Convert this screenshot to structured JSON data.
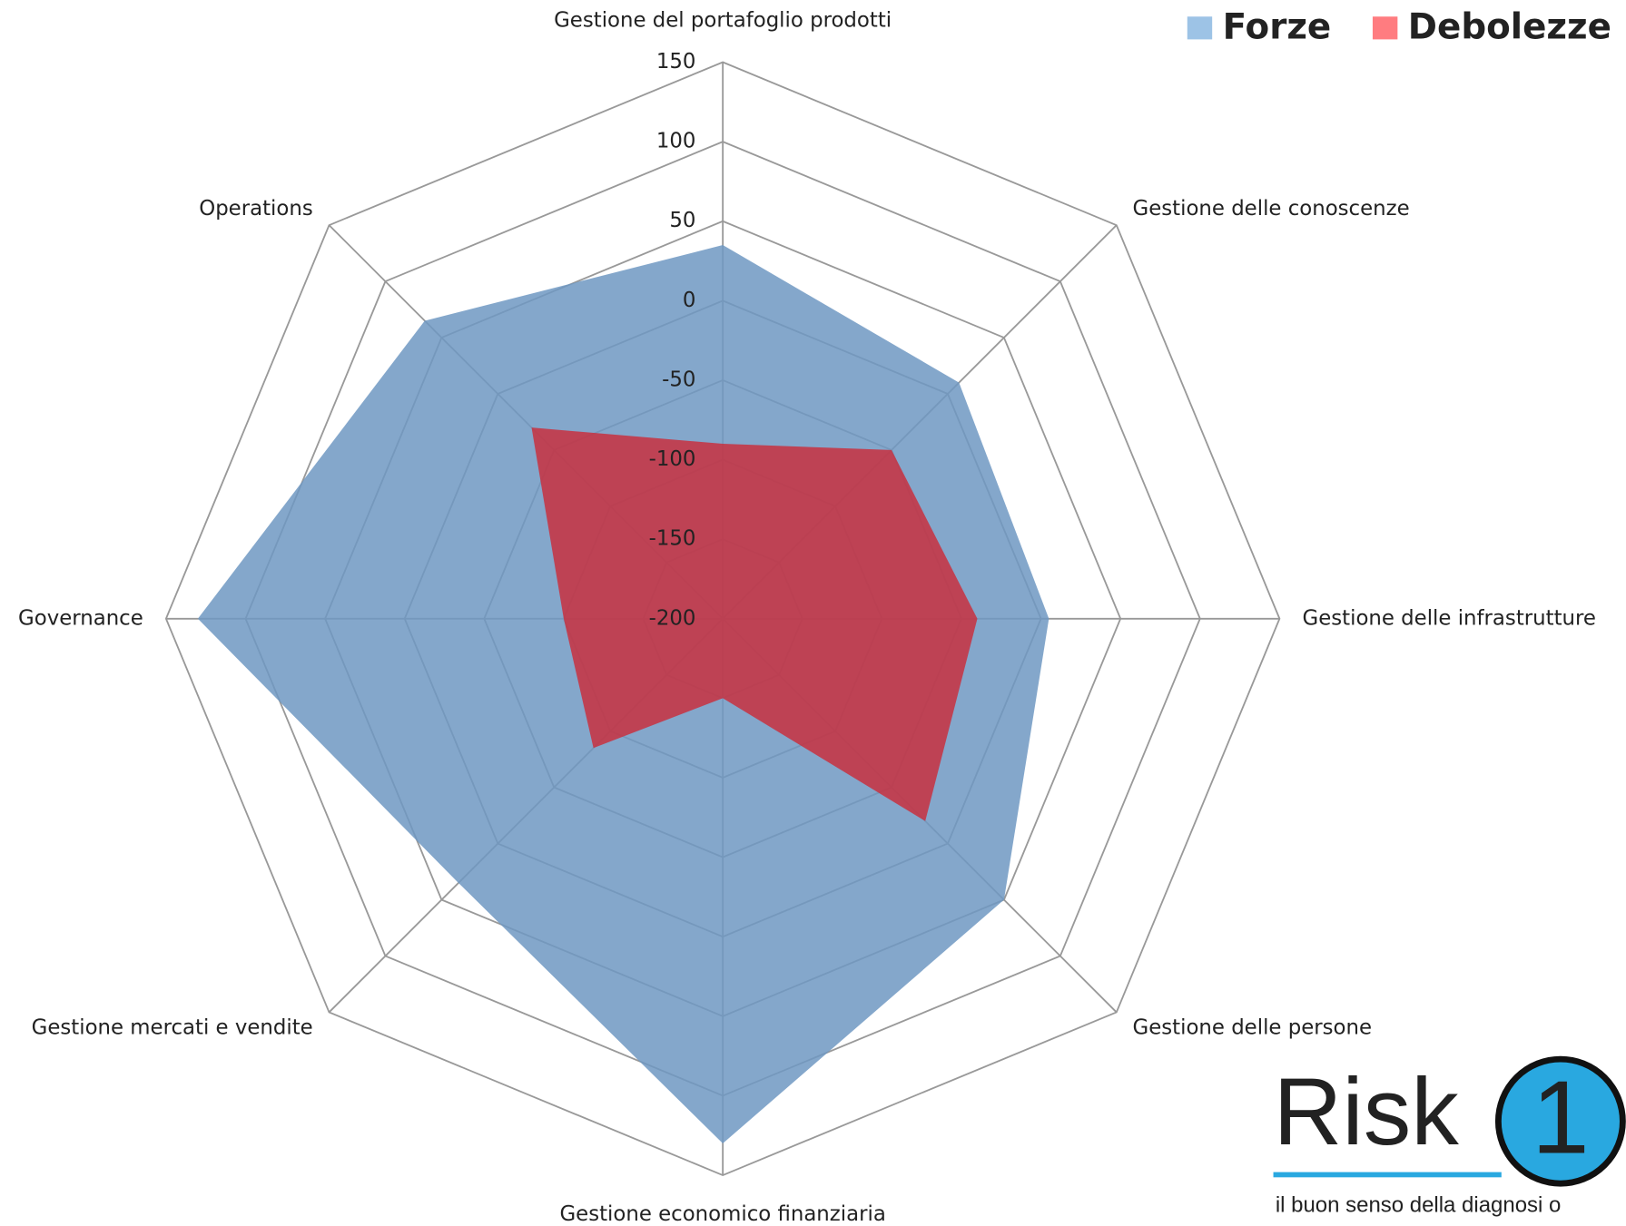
{
  "chart_data": {
    "type": "radar",
    "categories": [
      "Gestione del portafoglio prodotti",
      "Gestione delle conoscenze",
      "Gestione delle infrastrutture",
      "Gestione delle persone",
      "Gestione economico finanziaria",
      "Gestione mercati e vendite",
      "Governance",
      "Operations"
    ],
    "series": [
      {
        "name": "Forze",
        "color": "#6f98c2",
        "legend_color": "#9dc3e6",
        "values": [
          35,
          10,
          5,
          50,
          130,
          35,
          130,
          65
        ]
      },
      {
        "name": "Debolezze",
        "color": "#c8303f",
        "legend_color": "#ff7c80",
        "values": [
          -90,
          -50,
          -40,
          -20,
          -150,
          -85,
          -100,
          -30
        ]
      }
    ],
    "ylim": [
      -200,
      150
    ],
    "yticks": [
      -200,
      -150,
      -100,
      -50,
      0,
      50,
      100,
      150
    ],
    "grid": true,
    "legend": "top-right",
    "logo": {
      "name": "Risk",
      "digit": "1",
      "tagline": "il buon senso della diagnosi o"
    }
  }
}
